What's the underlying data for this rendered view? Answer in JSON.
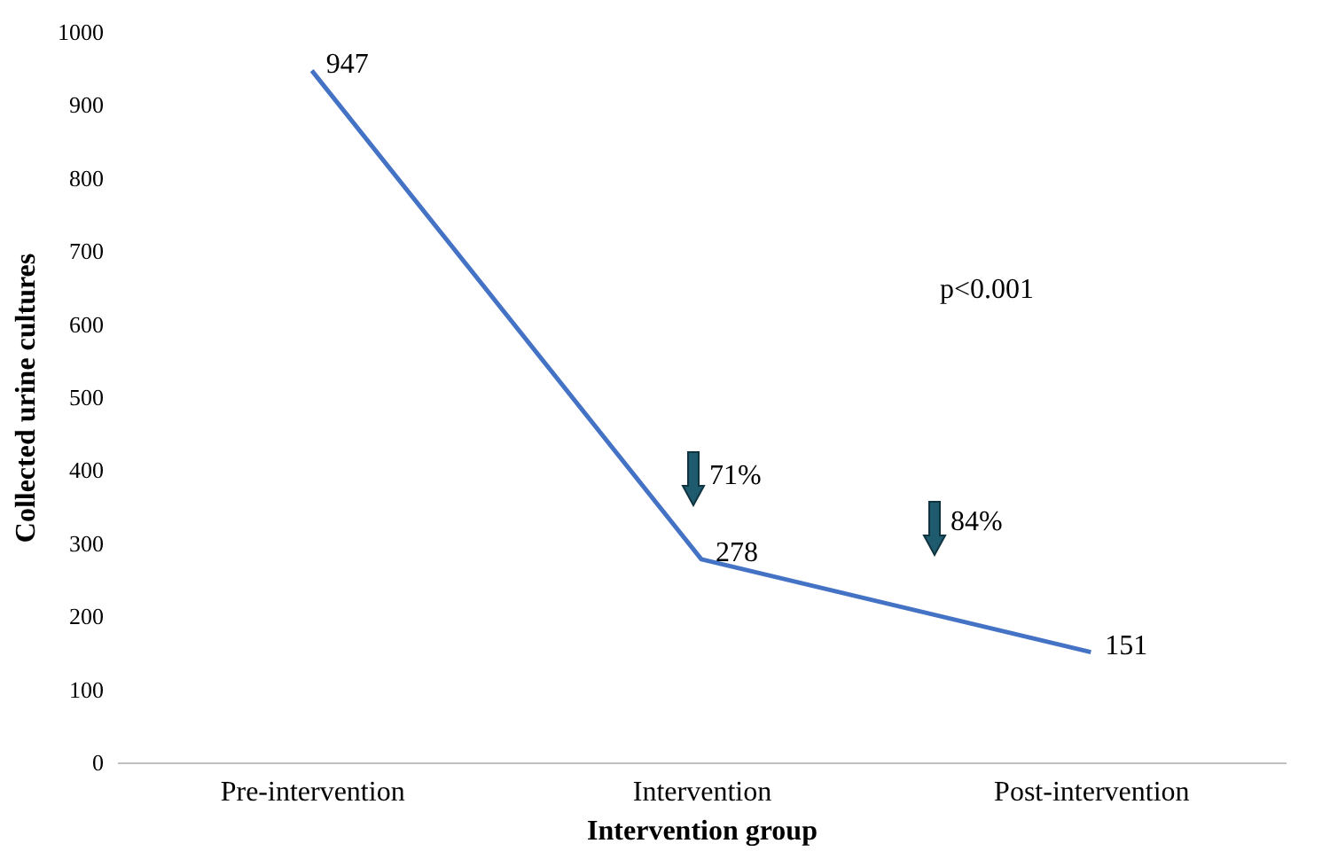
{
  "chart_data": {
    "type": "line",
    "xlabel": "Intervention group",
    "ylabel": "Collected urine cultures",
    "categories": [
      "Pre-intervention",
      "Intervention",
      "Post-intervention"
    ],
    "series": [
      {
        "color": "#4472c4",
        "values": [
          947,
          278,
          151
        ]
      }
    ],
    "ylim": [
      0,
      1000
    ],
    "yticks": [
      0,
      100,
      200,
      300,
      400,
      500,
      600,
      700,
      800,
      900,
      1000
    ],
    "grid": false,
    "marker": "none",
    "line_style": "solid",
    "data_labels": true,
    "annotations": [
      "p<0.001",
      "71%",
      "84%"
    ]
  }
}
